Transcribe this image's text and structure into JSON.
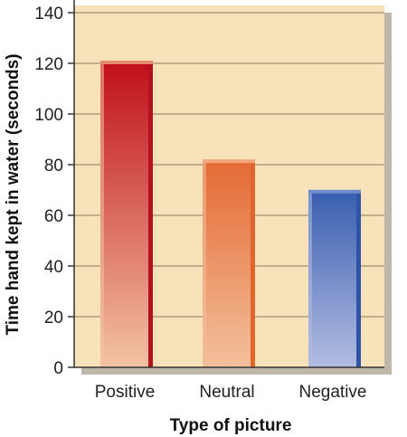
{
  "chart_data": {
    "type": "bar",
    "title": "",
    "xlabel": "Type of picture",
    "ylabel": "Time hand kept in water (seconds)",
    "categories": [
      "Positive",
      "Neutral",
      "Negative"
    ],
    "values": [
      120,
      81,
      69
    ],
    "ylim": [
      0,
      140
    ],
    "yticks": [
      0,
      20,
      40,
      60,
      80,
      100,
      120,
      140
    ],
    "grid": true,
    "legend": "none",
    "colors": {
      "plot_background": "#f8e2b9",
      "gridline": "#8a7a60",
      "axis": "#333333",
      "Positive": {
        "top": "#c0101a",
        "bottom": "#f3c3a3",
        "cap": "#e48d6e",
        "side": "#b4121c"
      },
      "Neutral": {
        "top": "#e46a34",
        "bottom": "#f3c09c",
        "cap": "#f0a679",
        "side": "#e0662e"
      },
      "Negative": {
        "top": "#3a5fb0",
        "bottom": "#b3bde2",
        "cap": "#6f8ace",
        "side": "#2f53a7"
      }
    }
  }
}
